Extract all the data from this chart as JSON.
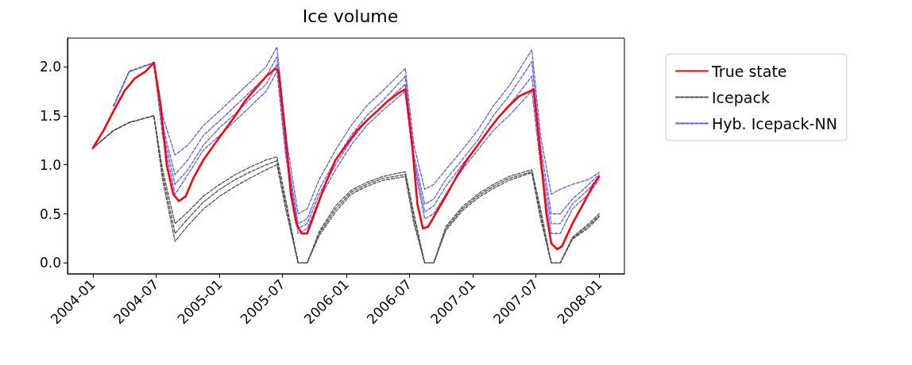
{
  "chart_data": {
    "type": "line",
    "title": "Ice volume",
    "xlim": [
      "2003-10-20",
      "2008-03-13"
    ],
    "ylim": [
      -0.11,
      2.29
    ],
    "xticks": [
      "2004-01",
      "2004-07",
      "2005-01",
      "2005-07",
      "2006-01",
      "2006-07",
      "2007-01",
      "2007-07",
      "2008-01"
    ],
    "yticks": [
      {
        "value": 0,
        "label": "0.0"
      },
      {
        "value": 0.5,
        "label": "0.5"
      },
      {
        "value": 1,
        "label": "1.0"
      },
      {
        "value": 1.5,
        "label": "1.5"
      },
      {
        "value": 2,
        "label": "2.0"
      }
    ],
    "grid": false,
    "legend": "top right",
    "marker": "none",
    "x": [
      "2004-01-01",
      "2004-03-01",
      "2004-04-15",
      "2004-06-25",
      "2004-07-20",
      "2004-08-25",
      "2004-10-01",
      "2004-11-15",
      "2005-01-01",
      "2005-02-15",
      "2005-04-01",
      "2005-05-15",
      "2005-06-15",
      "2005-07-10",
      "2005-08-15",
      "2005-09-10",
      "2005-10-15",
      "2005-12-01",
      "2006-01-15",
      "2006-03-01",
      "2006-04-15",
      "2006-06-20",
      "2006-07-15",
      "2006-08-15",
      "2006-09-10",
      "2006-10-15",
      "2006-12-01",
      "2007-01-15",
      "2007-03-01",
      "2007-04-15",
      "2007-06-20",
      "2007-07-15",
      "2007-08-15",
      "2007-09-10",
      "2007-10-15",
      "2007-12-01",
      "2007-12-31"
    ],
    "series": [
      {
        "name": "Icepack",
        "color": "#505050",
        "line_style": "dashed",
        "values": [
          1.17,
          1.35,
          1.43,
          1.5,
          0.9,
          0.3,
          0.45,
          0.62,
          0.75,
          0.85,
          0.93,
          1.0,
          1.04,
          0.6,
          0.0,
          0.0,
          0.3,
          0.55,
          0.72,
          0.8,
          0.86,
          0.9,
          0.45,
          0.0,
          0.0,
          0.35,
          0.55,
          0.68,
          0.78,
          0.86,
          0.93,
          0.5,
          0.0,
          0.0,
          0.25,
          0.38,
          0.48
        ]
      },
      {
        "color": "#505050",
        "line_style": "dashed",
        "values": [
          1.17,
          1.35,
          1.43,
          1.5,
          0.85,
          0.22,
          0.38,
          0.55,
          0.68,
          0.78,
          0.87,
          0.95,
          1.0,
          0.55,
          0.0,
          0.0,
          0.28,
          0.52,
          0.7,
          0.78,
          0.84,
          0.88,
          0.4,
          0.0,
          0.0,
          0.33,
          0.53,
          0.66,
          0.76,
          0.84,
          0.92,
          0.45,
          0.0,
          0.0,
          0.24,
          0.36,
          0.47
        ]
      },
      {
        "color": "#505050",
        "line_style": "dashed",
        "values": [
          1.17,
          1.35,
          1.43,
          1.5,
          0.95,
          0.4,
          0.52,
          0.68,
          0.8,
          0.9,
          0.98,
          1.05,
          1.08,
          0.65,
          0.0,
          0.0,
          0.32,
          0.58,
          0.74,
          0.82,
          0.88,
          0.93,
          0.5,
          0.0,
          0.0,
          0.37,
          0.57,
          0.7,
          0.8,
          0.88,
          0.95,
          0.55,
          0.0,
          0.0,
          0.26,
          0.4,
          0.5
        ]
      },
      {
        "name": "Hyb. Icepack-NN",
        "color": "#5a5aff",
        "line_style": "dashed",
        "values": [
          null,
          1.6,
          1.95,
          2.04,
          1.3,
          0.7,
          0.9,
          1.15,
          1.3,
          1.45,
          1.6,
          1.75,
          1.95,
          1.1,
          0.3,
          0.35,
          0.65,
          0.95,
          1.2,
          1.4,
          1.55,
          1.75,
          1.0,
          0.45,
          0.5,
          0.7,
          0.95,
          1.15,
          1.35,
          1.5,
          1.75,
          1.0,
          0.3,
          0.3,
          0.55,
          0.7,
          0.85
        ]
      },
      {
        "color": "#5a5aff",
        "line_style": "dashed",
        "values": [
          null,
          1.6,
          1.95,
          2.04,
          1.4,
          0.9,
          1.05,
          1.3,
          1.45,
          1.6,
          1.75,
          1.9,
          2.1,
          1.2,
          0.4,
          0.45,
          0.75,
          1.05,
          1.3,
          1.5,
          1.65,
          1.9,
          1.1,
          0.6,
          0.65,
          0.85,
          1.05,
          1.25,
          1.5,
          1.7,
          2.05,
          1.2,
          0.5,
          0.5,
          0.65,
          0.8,
          0.9
        ]
      },
      {
        "color": "#5a5aff",
        "line_style": "dashed",
        "values": [
          null,
          1.6,
          1.95,
          2.04,
          1.5,
          1.1,
          1.2,
          1.4,
          1.55,
          1.7,
          1.85,
          2.0,
          2.2,
          1.3,
          0.5,
          0.55,
          0.85,
          1.15,
          1.4,
          1.6,
          1.75,
          1.98,
          1.2,
          0.75,
          0.8,
          0.95,
          1.15,
          1.35,
          1.6,
          1.8,
          2.17,
          1.3,
          0.7,
          0.75,
          0.8,
          0.85,
          0.92
        ]
      },
      {
        "color": "#5a5aff",
        "line_style": "dashed",
        "values": [
          null,
          1.6,
          1.95,
          2.04,
          1.35,
          0.8,
          0.95,
          1.2,
          1.38,
          1.52,
          1.68,
          1.82,
          2.02,
          1.15,
          0.35,
          0.4,
          0.7,
          1.0,
          1.25,
          1.45,
          1.6,
          1.82,
          1.05,
          0.52,
          0.58,
          0.78,
          1.0,
          1.2,
          1.42,
          1.6,
          1.9,
          1.1,
          0.4,
          0.4,
          0.6,
          0.75,
          0.88
        ]
      },
      {
        "name": "True state",
        "color": "#ff0000",
        "line_style": "solid",
        "x": [
          "2004-01-01",
          "2004-02-01",
          "2004-03-01",
          "2004-04-01",
          "2004-05-01",
          "2004-06-01",
          "2004-06-25",
          "2004-07-15",
          "2004-08-01",
          "2004-08-20",
          "2004-09-05",
          "2004-09-25",
          "2004-10-15",
          "2004-11-15",
          "2004-12-15",
          "2005-01-15",
          "2005-02-15",
          "2005-03-15",
          "2005-04-15",
          "2005-05-15",
          "2005-06-10",
          "2005-06-20",
          "2005-07-10",
          "2005-07-25",
          "2005-08-10",
          "2005-08-25",
          "2005-09-10",
          "2005-10-01",
          "2005-11-01",
          "2005-12-01",
          "2006-01-01",
          "2006-02-01",
          "2006-03-01",
          "2006-04-01",
          "2006-05-01",
          "2006-06-01",
          "2006-06-20",
          "2006-07-10",
          "2006-07-25",
          "2006-08-10",
          "2006-08-25",
          "2006-09-15",
          "2006-10-15",
          "2006-11-15",
          "2006-12-15",
          "2007-01-15",
          "2007-02-15",
          "2007-03-15",
          "2007-04-15",
          "2007-05-15",
          "2007-06-15",
          "2007-06-25",
          "2007-07-15",
          "2007-08-01",
          "2007-08-15",
          "2007-09-01",
          "2007-09-15",
          "2007-10-15",
          "2007-11-15",
          "2007-12-15",
          "2007-12-31"
        ],
        "values": [
          1.17,
          1.35,
          1.55,
          1.75,
          1.88,
          1.95,
          2.04,
          1.6,
          1.0,
          0.7,
          0.63,
          0.68,
          0.85,
          1.05,
          1.2,
          1.35,
          1.5,
          1.65,
          1.78,
          1.9,
          1.98,
          1.95,
          1.3,
          0.7,
          0.4,
          0.3,
          0.3,
          0.5,
          0.8,
          1.05,
          1.2,
          1.35,
          1.45,
          1.55,
          1.65,
          1.73,
          1.77,
          1.2,
          0.6,
          0.35,
          0.37,
          0.5,
          0.68,
          0.88,
          1.05,
          1.2,
          1.35,
          1.48,
          1.6,
          1.7,
          1.75,
          1.77,
          1.1,
          0.5,
          0.2,
          0.14,
          0.17,
          0.4,
          0.6,
          0.8,
          0.88
        ]
      }
    ]
  }
}
